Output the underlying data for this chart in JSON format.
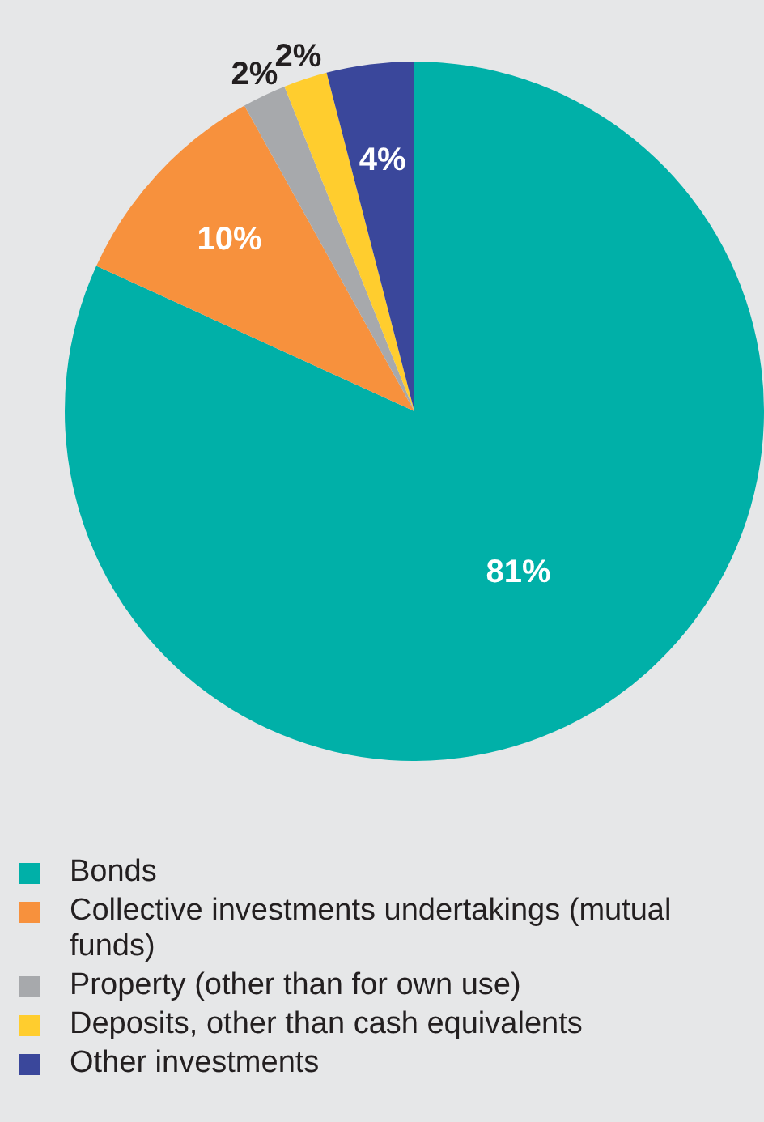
{
  "chart_data": {
    "type": "pie",
    "categories": [
      "Bonds",
      "Collective investments undertakings (mutual funds)",
      "Property (other than for own use)",
      "Deposits, other than cash equivalents",
      "Other investments"
    ],
    "values": [
      81,
      10,
      2,
      2,
      4
    ],
    "colors": [
      "#00b0a8",
      "#f7913d",
      "#a7a9ac",
      "#ffcd2e",
      "#3a479b"
    ],
    "value_labels": [
      "81%",
      "10%",
      "2%",
      "2%",
      "4%"
    ],
    "legend": "bottom"
  }
}
